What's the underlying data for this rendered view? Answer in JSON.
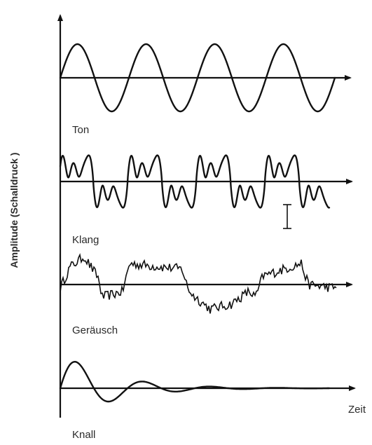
{
  "diagram": {
    "y_axis_label": "Amplitude (Schalldruck )",
    "x_axis_label": "Zeit",
    "panels": [
      {
        "key": "ton",
        "label": "Ton"
      },
      {
        "key": "klang",
        "label": "Klang"
      },
      {
        "key": "geraeusch",
        "label": "Geräusch"
      },
      {
        "key": "knall",
        "label": "Knall"
      }
    ]
  }
}
